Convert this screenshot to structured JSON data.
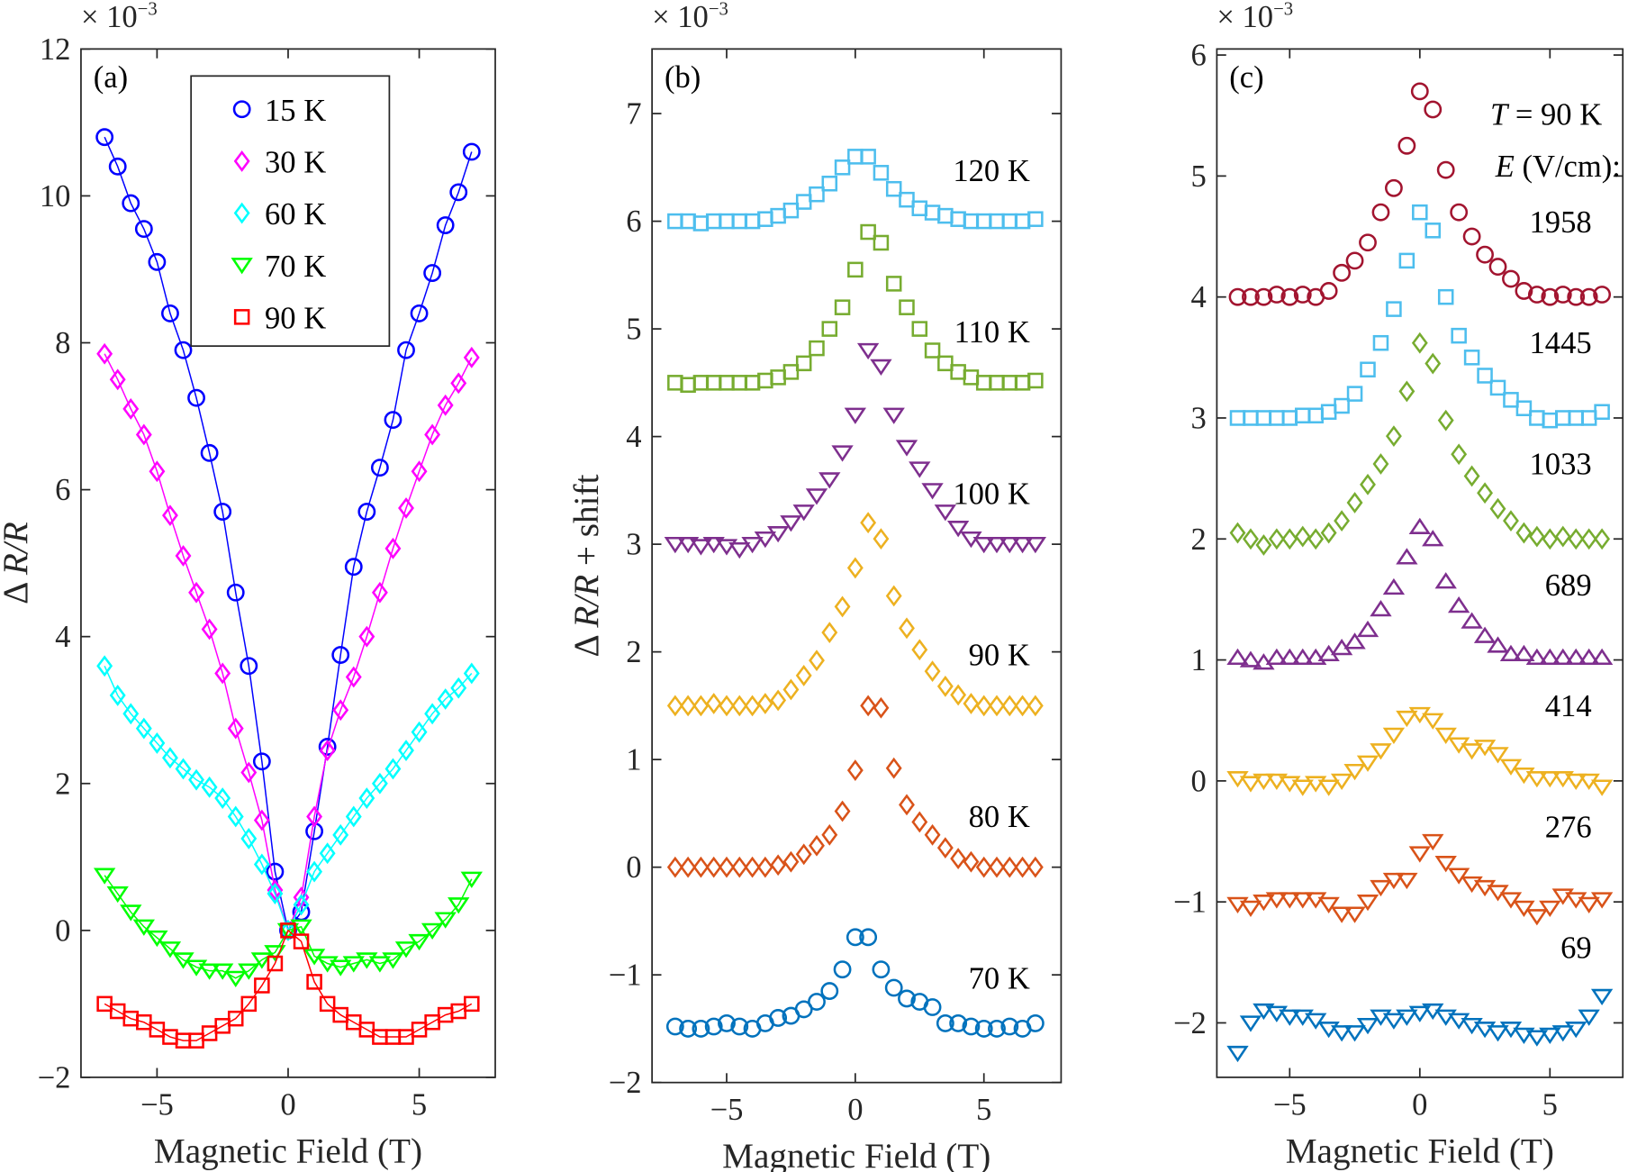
{
  "chart_data": [
    {
      "type": "line",
      "panel_label": "(a)",
      "exponent_label": "× 10",
      "exponent_power": "−3",
      "xlabel": "Magnetic Field (T)",
      "ylabel_prefix": "Δ ",
      "ylabel_italic": "R/R",
      "ylabel_suffix": "",
      "xlim": [
        -7.9,
        7.9
      ],
      "ylim": [
        -2,
        12
      ],
      "xticks": [
        -5,
        0,
        5
      ],
      "xtick_labels": [
        "−5",
        "0",
        "5"
      ],
      "yticks": [
        -2,
        0,
        2,
        4,
        6,
        8,
        10,
        12
      ],
      "ytick_labels": [
        "−2",
        "0",
        "2",
        "4",
        "6",
        "8",
        "10",
        "12"
      ],
      "legend_position": "top-center",
      "x": [
        -7,
        -6.5,
        -6,
        -5.5,
        -5,
        -4.5,
        -4,
        -3.5,
        -3,
        -2.5,
        -2,
        -1.5,
        -1,
        -0.5,
        0,
        0.5,
        1,
        1.5,
        2,
        2.5,
        3,
        3.5,
        4,
        4.5,
        5,
        5.5,
        6,
        6.5,
        7
      ],
      "series": [
        {
          "name": "15 K",
          "marker": "circle",
          "color": "#0000ff",
          "values": [
            10.8,
            10.4,
            9.9,
            9.55,
            9.1,
            8.4,
            7.9,
            7.25,
            6.5,
            5.7,
            4.6,
            3.6,
            2.3,
            0.8,
            0,
            0.25,
            1.35,
            2.5,
            3.75,
            4.95,
            5.7,
            6.3,
            6.95,
            7.9,
            8.4,
            8.95,
            9.6,
            10.05,
            10.6
          ]
        },
        {
          "name": "30 K",
          "marker": "diamond",
          "color": "#ff00ff",
          "values": [
            7.85,
            7.5,
            7.1,
            6.75,
            6.25,
            5.65,
            5.1,
            4.6,
            4.1,
            3.5,
            2.75,
            2.15,
            1.5,
            0.55,
            0,
            0.45,
            1.55,
            2.45,
            3.0,
            3.45,
            4.0,
            4.6,
            5.2,
            5.75,
            6.25,
            6.75,
            7.15,
            7.45,
            7.8
          ]
        },
        {
          "name": "60 K",
          "marker": "diamond",
          "color": "#00ffff",
          "values": [
            3.6,
            3.2,
            2.95,
            2.75,
            2.55,
            2.35,
            2.2,
            2.05,
            1.95,
            1.8,
            1.55,
            1.25,
            0.9,
            0.5,
            0,
            0.35,
            0.8,
            1.05,
            1.3,
            1.55,
            1.8,
            2.0,
            2.2,
            2.45,
            2.7,
            2.95,
            3.15,
            3.3,
            3.5
          ]
        },
        {
          "name": "70 K",
          "marker": "triangle-down",
          "color": "#00ff00",
          "values": [
            0.75,
            0.5,
            0.25,
            0.05,
            -0.1,
            -0.25,
            -0.4,
            -0.5,
            -0.55,
            -0.55,
            -0.65,
            -0.55,
            -0.4,
            -0.3,
            0,
            0.05,
            -0.35,
            -0.45,
            -0.5,
            -0.45,
            -0.4,
            -0.45,
            -0.4,
            -0.25,
            -0.15,
            0.0,
            0.15,
            0.35,
            0.7
          ]
        },
        {
          "name": "90 K",
          "marker": "square",
          "color": "#ff0000",
          "values": [
            -1.0,
            -1.1,
            -1.2,
            -1.25,
            -1.35,
            -1.45,
            -1.5,
            -1.5,
            -1.4,
            -1.3,
            -1.2,
            -1.0,
            -0.75,
            -0.45,
            0,
            -0.15,
            -0.7,
            -1.0,
            -1.15,
            -1.25,
            -1.35,
            -1.45,
            -1.45,
            -1.45,
            -1.35,
            -1.25,
            -1.15,
            -1.1,
            -1.0
          ]
        }
      ]
    },
    {
      "type": "scatter",
      "panel_label": "(b)",
      "exponent_label": "× 10",
      "exponent_power": "−3",
      "xlabel": "Magnetic Field (T)",
      "ylabel_prefix": "Δ ",
      "ylabel_italic": "R/R",
      "ylabel_suffix": " + shift",
      "xlim": [
        -7.9,
        8.0
      ],
      "ylim": [
        -2,
        7.6
      ],
      "xticks": [
        -5,
        0,
        5
      ],
      "xtick_labels": [
        "−5",
        "0",
        "5"
      ],
      "yticks": [
        -2,
        -1,
        0,
        1,
        2,
        3,
        4,
        5,
        6,
        7
      ],
      "ytick_labels": [
        "−2",
        "−1",
        "0",
        "1",
        "2",
        "3",
        "4",
        "5",
        "6",
        "7"
      ],
      "x": [
        -7,
        -6.5,
        -6,
        -5.5,
        -5,
        -4.5,
        -4,
        -3.5,
        -3,
        -2.5,
        -2,
        -1.5,
        -1,
        -0.5,
        0,
        0.5,
        1,
        1.5,
        2,
        2.5,
        3,
        3.5,
        4,
        4.5,
        5,
        5.5,
        6,
        6.5,
        7
      ],
      "series": [
        {
          "name": "120 K",
          "marker": "square",
          "color": "#4dbeee",
          "shift": 6.0,
          "values": [
            6.0,
            6.0,
            5.98,
            6.0,
            6.0,
            6.0,
            6.0,
            6.02,
            6.05,
            6.1,
            6.18,
            6.25,
            6.35,
            6.5,
            6.6,
            6.6,
            6.45,
            6.3,
            6.2,
            6.12,
            6.08,
            6.05,
            6.02,
            6.0,
            6.0,
            6.0,
            6.0,
            6.0,
            6.02
          ]
        },
        {
          "name": "110 K",
          "marker": "square",
          "color": "#77ac30",
          "shift": 4.5,
          "values": [
            4.5,
            4.48,
            4.5,
            4.5,
            4.5,
            4.5,
            4.5,
            4.52,
            4.55,
            4.6,
            4.68,
            4.82,
            5.0,
            5.2,
            5.55,
            5.9,
            5.8,
            5.42,
            5.2,
            5.0,
            4.8,
            4.68,
            4.6,
            4.55,
            4.5,
            4.5,
            4.5,
            4.5,
            4.52
          ]
        },
        {
          "name": "100 K",
          "marker": "triangle-down",
          "color": "#7e2f8e",
          "shift": 3.0,
          "values": [
            3.0,
            3.0,
            2.98,
            3.0,
            2.98,
            2.95,
            3.0,
            3.05,
            3.1,
            3.2,
            3.3,
            3.45,
            3.6,
            3.85,
            4.2,
            4.8,
            4.65,
            4.2,
            3.9,
            3.7,
            3.5,
            3.3,
            3.15,
            3.05,
            3.0,
            3.0,
            3.0,
            3.0,
            3.0
          ]
        },
        {
          "name": "90 K",
          "marker": "diamond",
          "color": "#edb120",
          "shift": 1.5,
          "values": [
            1.5,
            1.5,
            1.5,
            1.52,
            1.5,
            1.5,
            1.5,
            1.52,
            1.55,
            1.65,
            1.78,
            1.92,
            2.18,
            2.42,
            2.78,
            3.2,
            3.05,
            2.52,
            2.22,
            2.02,
            1.82,
            1.68,
            1.6,
            1.52,
            1.5,
            1.5,
            1.5,
            1.5,
            1.5
          ]
        },
        {
          "name": "80 K",
          "marker": "diamond",
          "color": "#d95319",
          "shift": 0.0,
          "values": [
            0.0,
            0.0,
            0.0,
            0.0,
            0.0,
            0.0,
            0.0,
            0.0,
            0.02,
            0.05,
            0.12,
            0.2,
            0.3,
            0.52,
            0.9,
            1.5,
            1.48,
            0.92,
            0.58,
            0.42,
            0.3,
            0.18,
            0.08,
            0.05,
            0.0,
            0.0,
            0.0,
            0.0,
            0.0
          ]
        },
        {
          "name": "70 K",
          "marker": "circle",
          "color": "#0072bd",
          "shift": -1.5,
          "values": [
            -1.48,
            -1.5,
            -1.5,
            -1.48,
            -1.45,
            -1.48,
            -1.5,
            -1.45,
            -1.4,
            -1.38,
            -1.32,
            -1.25,
            -1.15,
            -0.95,
            -0.65,
            -0.65,
            -0.95,
            -1.12,
            -1.22,
            -1.25,
            -1.3,
            -1.45,
            -1.45,
            -1.48,
            -1.5,
            -1.5,
            -1.48,
            -1.5,
            -1.45
          ]
        }
      ]
    },
    {
      "type": "scatter",
      "panel_label": "(c)",
      "exponent_label": "× 10",
      "exponent_power": "−3",
      "xlabel": "Magnetic Field (T)",
      "xlim": [
        -7.8,
        7.8
      ],
      "ylim": [
        -2.45,
        6.05
      ],
      "xticks": [
        -5,
        0,
        5
      ],
      "xtick_labels": [
        "−5",
        "0",
        "5"
      ],
      "yticks": [
        -2,
        -1,
        0,
        1,
        2,
        3,
        4,
        5,
        6
      ],
      "ytick_labels": [
        "−2",
        "−1",
        "0",
        "1",
        "2",
        "3",
        "4",
        "5",
        "6"
      ],
      "annotation_T_var": "T",
      "annotation_T_value": " = 90 K",
      "annotation_E_var": "E",
      "annotation_E_unit": " (V/cm):",
      "x": [
        -7,
        -6.5,
        -6,
        -5.5,
        -5,
        -4.5,
        -4,
        -3.5,
        -3,
        -2.5,
        -2,
        -1.5,
        -1,
        -0.5,
        0,
        0.5,
        1,
        1.5,
        2,
        2.5,
        3,
        3.5,
        4,
        4.5,
        5,
        5.5,
        6,
        6.5,
        7
      ],
      "series": [
        {
          "name": "1958",
          "marker": "circle",
          "color": "#a2142f",
          "shift": 4,
          "values": [
            4.0,
            4.0,
            4.0,
            4.02,
            4.0,
            4.02,
            4.0,
            4.05,
            4.2,
            4.3,
            4.45,
            4.7,
            4.9,
            5.25,
            5.7,
            5.55,
            5.05,
            4.7,
            4.5,
            4.35,
            4.25,
            4.15,
            4.05,
            4.02,
            4.0,
            4.02,
            4.0,
            4.0,
            4.02
          ]
        },
        {
          "name": "1445",
          "marker": "square",
          "color": "#4dbeee",
          "shift": 3,
          "values": [
            3.0,
            3.0,
            3.0,
            3.0,
            3.0,
            3.02,
            3.02,
            3.05,
            3.1,
            3.2,
            3.4,
            3.62,
            3.9,
            4.3,
            4.7,
            4.55,
            4.0,
            3.68,
            3.5,
            3.35,
            3.25,
            3.15,
            3.08,
            3.0,
            2.98,
            3.0,
            3.0,
            3.0,
            3.05
          ]
        },
        {
          "name": "1033",
          "marker": "diamond",
          "color": "#77ac30",
          "shift": 2,
          "values": [
            2.05,
            2.0,
            1.95,
            2.0,
            2.0,
            2.02,
            2.0,
            2.05,
            2.15,
            2.3,
            2.45,
            2.62,
            2.85,
            3.22,
            3.62,
            3.45,
            2.98,
            2.7,
            2.52,
            2.38,
            2.25,
            2.15,
            2.05,
            2.02,
            2.0,
            2.02,
            2.0,
            2.0,
            2.0
          ]
        },
        {
          "name": "689",
          "marker": "triangle-up",
          "color": "#7e2f8e",
          "shift": 1,
          "values": [
            1.02,
            1.0,
            0.98,
            1.02,
            1.02,
            1.02,
            1.02,
            1.05,
            1.1,
            1.15,
            1.25,
            1.42,
            1.6,
            1.85,
            2.1,
            2.0,
            1.65,
            1.45,
            1.32,
            1.2,
            1.12,
            1.05,
            1.05,
            1.02,
            1.02,
            1.02,
            1.02,
            1.02,
            1.02
          ]
        },
        {
          "name": "414",
          "marker": "triangle-down",
          "color": "#edb120",
          "shift": 0,
          "values": [
            0.02,
            -0.02,
            0.0,
            0.0,
            -0.02,
            -0.05,
            -0.02,
            -0.05,
            0.0,
            0.08,
            0.15,
            0.25,
            0.38,
            0.52,
            0.55,
            0.5,
            0.38,
            0.3,
            0.25,
            0.28,
            0.22,
            0.12,
            0.05,
            0.02,
            0.02,
            0.02,
            0.0,
            0.0,
            -0.05
          ]
        },
        {
          "name": "276",
          "marker": "triangle-down",
          "color": "#d95319",
          "shift": -1,
          "values": [
            -1.02,
            -1.05,
            -1.0,
            -0.98,
            -0.98,
            -0.98,
            -0.98,
            -1.02,
            -1.1,
            -1.1,
            -1.0,
            -0.88,
            -0.82,
            -0.82,
            -0.6,
            -0.5,
            -0.68,
            -0.78,
            -0.85,
            -0.88,
            -0.92,
            -0.98,
            -1.05,
            -1.12,
            -1.05,
            -0.95,
            -0.98,
            -1.02,
            -0.98
          ]
        },
        {
          "name": "69",
          "marker": "triangle-down",
          "color": "#0072bd",
          "shift": -2,
          "values": [
            -2.25,
            -2.0,
            -1.9,
            -1.92,
            -1.95,
            -1.95,
            -1.98,
            -2.05,
            -2.08,
            -2.08,
            -2.02,
            -1.95,
            -1.98,
            -1.95,
            -1.92,
            -1.9,
            -1.95,
            -1.98,
            -2.02,
            -2.05,
            -2.08,
            -2.05,
            -2.1,
            -2.12,
            -2.1,
            -2.08,
            -2.05,
            -1.95,
            -1.78
          ]
        }
      ]
    }
  ]
}
